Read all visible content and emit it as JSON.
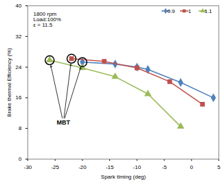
{
  "chart_data": {
    "type": "line",
    "x_label": "Spark timing (deg)",
    "y_label": "Brake thermal Efficiency (%)",
    "xlim": [
      -30,
      5
    ],
    "xticks": [
      -30,
      -25,
      -20,
      -15,
      -10,
      -5,
      0,
      5
    ],
    "ylim": [
      0,
      40
    ],
    "yticks": [
      0,
      8,
      16,
      24,
      32,
      40
    ],
    "grid": false,
    "legend": "top-right",
    "series": [
      {
        "name": "0.9",
        "color": "#4f81bd",
        "marker": "diamond",
        "x": [
          -20,
          -14,
          -10,
          -8,
          -2,
          4
        ],
        "values": [
          25.3,
          24.8,
          24.0,
          23.4,
          20.0,
          16.0
        ]
      },
      {
        "name": "1",
        "color": "#c0504d",
        "marker": "square",
        "x": [
          -22,
          -16,
          -10,
          -4,
          2
        ],
        "values": [
          26.2,
          25.5,
          23.8,
          20.2,
          14.3
        ]
      },
      {
        "name": "1.1",
        "color": "#9bbb59",
        "marker": "triangle",
        "x": [
          -26,
          -20,
          -14,
          -8,
          -2
        ],
        "values": [
          25.8,
          23.8,
          21.5,
          17.0,
          8.5
        ]
      }
    ],
    "annotations": [
      {
        "text": "1800 rpm\nLoad:100%\nε = 11.5",
        "x": -29,
        "y": 38.5
      },
      {
        "text": "MBT",
        "x": -23.5,
        "y": 9.5,
        "points": [
          {
            "series": "1.1",
            "point": 0
          },
          {
            "series": "1",
            "point": 0
          },
          {
            "series": "0.9",
            "point": 0
          }
        ]
      }
    ]
  }
}
